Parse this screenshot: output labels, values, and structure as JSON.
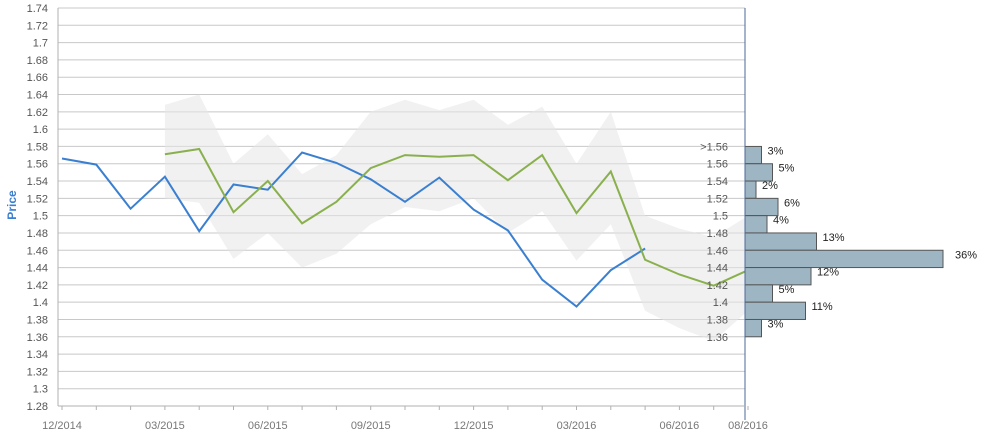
{
  "chart_data": {
    "type": "line",
    "ylabel": "Price",
    "ylim": [
      1.28,
      1.74
    ],
    "grid": true,
    "y_ticks": [
      "1.28",
      "1.3",
      "1.32",
      "1.34",
      "1.36",
      "1.38",
      "1.4",
      "1.42",
      "1.44",
      "1.46",
      "1.48",
      "1.5",
      "1.52",
      "1.54",
      "1.56",
      "1.58",
      "1.6",
      "1.62",
      "1.64",
      "1.66",
      "1.68",
      "1.7",
      "1.72",
      "1.74"
    ],
    "x_ticks": [
      "12/2014",
      "03/2015",
      "06/2015",
      "09/2015",
      "12/2015",
      "03/2016",
      "06/2016",
      "08/2016"
    ],
    "series": [
      {
        "color": "#3a7fd0",
        "x": [
          "2014-12",
          "2015-01",
          "2015-02",
          "2015-03",
          "2015-04",
          "2015-05",
          "2015-06",
          "2015-07",
          "2015-08",
          "2015-09",
          "2015-10",
          "2015-11",
          "2015-12",
          "2016-01",
          "2016-02",
          "2016-03",
          "2016-04",
          "2016-05"
        ],
        "values": [
          1.566,
          1.559,
          1.508,
          1.545,
          1.482,
          1.536,
          1.53,
          1.573,
          1.561,
          1.542,
          1.516,
          1.544,
          1.507,
          1.483,
          1.426,
          1.395,
          1.437,
          1.462
        ]
      },
      {
        "color": "#8ab04e",
        "x": [
          "2015-03",
          "2015-04",
          "2015-05",
          "2015-06",
          "2015-07",
          "2015-08",
          "2015-09",
          "2015-10",
          "2015-11",
          "2015-12",
          "2016-01",
          "2016-02",
          "2016-03",
          "2016-04",
          "2016-05",
          "2016-06",
          "2016-07",
          "2016-08"
        ],
        "values": [
          1.571,
          1.577,
          1.504,
          1.54,
          1.491,
          1.516,
          1.555,
          1.57,
          1.568,
          1.57,
          1.541,
          1.57,
          1.503,
          1.551,
          1.449,
          1.432,
          1.419,
          1.437
        ]
      }
    ],
    "band": {
      "color": "#e6e6e6",
      "x": [
        "2015-03",
        "2015-04",
        "2015-05",
        "2015-06",
        "2015-07",
        "2015-08",
        "2015-09",
        "2015-10",
        "2015-11",
        "2015-12",
        "2016-01",
        "2016-02",
        "2016-03",
        "2016-04",
        "2016-05",
        "2016-06",
        "2016-07",
        "2016-08"
      ],
      "upper": [
        1.628,
        1.64,
        1.56,
        1.594,
        1.548,
        1.57,
        1.62,
        1.634,
        1.622,
        1.634,
        1.605,
        1.626,
        1.56,
        1.62,
        1.5,
        1.485,
        1.475,
        1.5
      ],
      "lower": [
        1.52,
        1.515,
        1.45,
        1.48,
        1.44,
        1.456,
        1.49,
        1.51,
        1.505,
        1.52,
        1.48,
        1.505,
        1.448,
        1.49,
        1.39,
        1.37,
        1.355,
        1.39
      ]
    },
    "histogram": {
      "color": "#9eb6c4",
      "bins": [
        {
          "label": ">1.56",
          "percent": 3,
          "percent_label": "3%"
        },
        {
          "label": "1.56",
          "percent": 5,
          "percent_label": "5%"
        },
        {
          "label": "1.54",
          "percent": 2,
          "percent_label": "2%"
        },
        {
          "label": "1.52",
          "percent": 6,
          "percent_label": "6%"
        },
        {
          "label": "1.5",
          "percent": 4,
          "percent_label": "4%"
        },
        {
          "label": "1.48",
          "percent": 13,
          "percent_label": "13%"
        },
        {
          "label": "1.46",
          "percent": 36,
          "percent_label": "36%"
        },
        {
          "label": "1.44",
          "percent": 12,
          "percent_label": "12%"
        },
        {
          "label": "1.42",
          "percent": 5,
          "percent_label": "5%"
        },
        {
          "label": "1.4",
          "percent": 11,
          "percent_label": "11%"
        },
        {
          "label": "1.38",
          "percent": 3,
          "percent_label": "3%"
        },
        {
          "label": "1.36",
          "percent": null,
          "percent_label": ""
        }
      ]
    }
  }
}
